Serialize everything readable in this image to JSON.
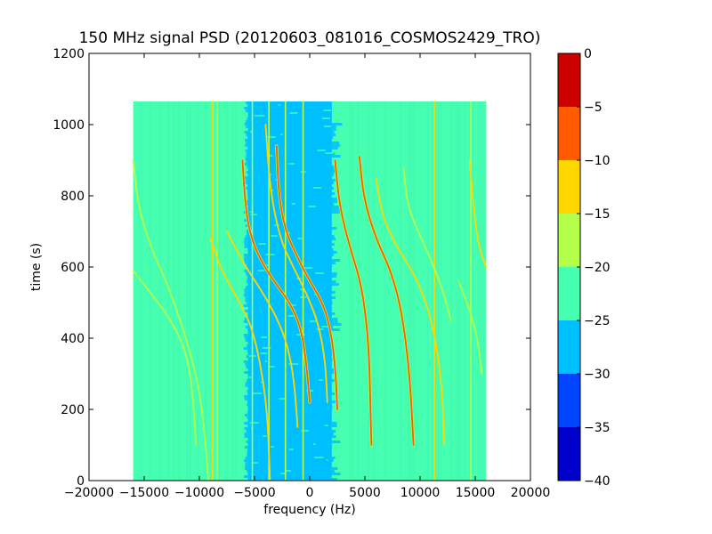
{
  "chart_data": {
    "type": "heatmap",
    "title": "150 MHz signal PSD (20120603_081016_COSMOS2429_TRO)",
    "xlabel": "frequency (Hz)",
    "ylabel": "time (s)",
    "xlim": [
      -20000,
      20000
    ],
    "ylim": [
      0,
      1200
    ],
    "x_ticks": [
      -20000,
      -15000,
      -10000,
      -5000,
      0,
      5000,
      10000,
      15000,
      20000
    ],
    "x_tick_labels": [
      "−20000",
      "−15000",
      "−10000",
      "−5000",
      "0",
      "5000",
      "10000",
      "15000",
      "20000"
    ],
    "y_ticks": [
      0,
      200,
      400,
      600,
      800,
      1000,
      1200
    ],
    "y_tick_labels": [
      "0",
      "200",
      "400",
      "600",
      "800",
      "1000",
      "1200"
    ],
    "data_extent": {
      "x": [
        -16000,
        16000
      ],
      "y": [
        0,
        1065
      ]
    },
    "background_level_band": [
      -25,
      -20
    ],
    "noise_region_band": [
      -30,
      -25
    ],
    "noise_region_x": [
      -6000,
      3000
    ],
    "grid": false,
    "colorbar": {
      "levels": [
        -40,
        -35,
        -30,
        -25,
        -20,
        -15,
        -10,
        -5,
        0
      ],
      "tick_labels": [
        "−40",
        "−35",
        "−30",
        "−25",
        "−20",
        "−15",
        "−10",
        "−5",
        "0"
      ],
      "colors": [
        "#0000cd",
        "#0044ff",
        "#00bfff",
        "#47ffb0",
        "#b4ff4b",
        "#ffd700",
        "#ff5a00",
        "#cd0000"
      ]
    },
    "signal_traces": [
      {
        "points": [
          [
            -16000,
            900
          ],
          [
            -15500,
            760
          ],
          [
            -14200,
            640
          ],
          [
            -13000,
            560
          ],
          [
            -11500,
            430
          ],
          [
            -10500,
            320
          ],
          [
            -10000,
            250
          ],
          [
            -9500,
            130
          ],
          [
            -9200,
            0
          ]
        ],
        "level": -17
      },
      {
        "points": [
          [
            -16000,
            590
          ],
          [
            -14500,
            530
          ],
          [
            -13000,
            470
          ],
          [
            -11700,
            400
          ],
          [
            -11000,
            330
          ],
          [
            -10600,
            240
          ],
          [
            -10300,
            100
          ]
        ],
        "level": -17
      },
      {
        "points": [
          [
            -9000,
            680
          ],
          [
            -8000,
            590
          ],
          [
            -6500,
            510
          ],
          [
            -5200,
            430
          ],
          [
            -4300,
            300
          ],
          [
            -3800,
            170
          ],
          [
            -3600,
            0
          ]
        ],
        "level": -15
      },
      {
        "points": [
          [
            -7500,
            700
          ],
          [
            -6000,
            610
          ],
          [
            -4500,
            540
          ],
          [
            -3000,
            460
          ],
          [
            -2000,
            380
          ],
          [
            -1400,
            280
          ],
          [
            -1100,
            150
          ]
        ],
        "level": -14
      },
      {
        "points": [
          [
            -6100,
            900
          ],
          [
            -5800,
            760
          ],
          [
            -5300,
            680
          ],
          [
            -4300,
            610
          ],
          [
            -3000,
            550
          ],
          [
            -1800,
            500
          ],
          [
            -800,
            430
          ],
          [
            -300,
            330
          ],
          [
            0,
            220
          ]
        ],
        "level": -8
      },
      {
        "points": [
          [
            -3000,
            940
          ],
          [
            -2800,
            800
          ],
          [
            -2200,
            700
          ],
          [
            -1000,
            620
          ],
          [
            0,
            560
          ],
          [
            1000,
            510
          ],
          [
            1800,
            440
          ],
          [
            2300,
            330
          ],
          [
            2500,
            200
          ]
        ],
        "level": -7
      },
      {
        "points": [
          [
            -4000,
            1000
          ],
          [
            -3600,
            820
          ],
          [
            -2700,
            680
          ],
          [
            -1500,
            600
          ],
          [
            -200,
            520
          ],
          [
            800,
            440
          ],
          [
            1400,
            340
          ],
          [
            1600,
            220
          ]
        ],
        "level": -14
      },
      {
        "points": [
          [
            2300,
            900
          ],
          [
            2700,
            770
          ],
          [
            3600,
            660
          ],
          [
            4600,
            560
          ],
          [
            5100,
            460
          ],
          [
            5400,
            340
          ],
          [
            5500,
            200
          ],
          [
            5600,
            100
          ]
        ],
        "level": -7
      },
      {
        "points": [
          [
            4500,
            910
          ],
          [
            4900,
            790
          ],
          [
            6000,
            680
          ],
          [
            7200,
            600
          ],
          [
            8000,
            520
          ],
          [
            8600,
            420
          ],
          [
            9100,
            280
          ],
          [
            9400,
            100
          ]
        ],
        "level": -7
      },
      {
        "points": [
          [
            6000,
            850
          ],
          [
            6600,
            740
          ],
          [
            8000,
            650
          ],
          [
            9500,
            580
          ],
          [
            10800,
            480
          ],
          [
            11600,
            360
          ],
          [
            12000,
            250
          ],
          [
            12200,
            100
          ]
        ],
        "level": -14
      },
      {
        "points": [
          [
            8500,
            880
          ],
          [
            8800,
            780
          ],
          [
            9800,
            700
          ],
          [
            11000,
            620
          ],
          [
            12000,
            540
          ],
          [
            12800,
            450
          ]
        ],
        "level": -16
      },
      {
        "points": [
          [
            14500,
            900
          ],
          [
            14800,
            780
          ],
          [
            15200,
            680
          ],
          [
            15600,
            630
          ],
          [
            16000,
            600
          ]
        ],
        "level": -15
      },
      {
        "points": [
          [
            13500,
            560
          ],
          [
            14500,
            480
          ],
          [
            15200,
            400
          ],
          [
            15600,
            300
          ]
        ],
        "level": -18
      }
    ],
    "vertical_lines": [
      {
        "x": -8800,
        "level": -15
      },
      {
        "x": -8400,
        "level": -17
      },
      {
        "x": -5200,
        "level": -17
      },
      {
        "x": -3700,
        "level": -17
      },
      {
        "x": -2200,
        "level": -18
      },
      {
        "x": -600,
        "level": -18
      },
      {
        "x": 11300,
        "level": -15
      },
      {
        "x": 14600,
        "level": -16
      }
    ]
  }
}
